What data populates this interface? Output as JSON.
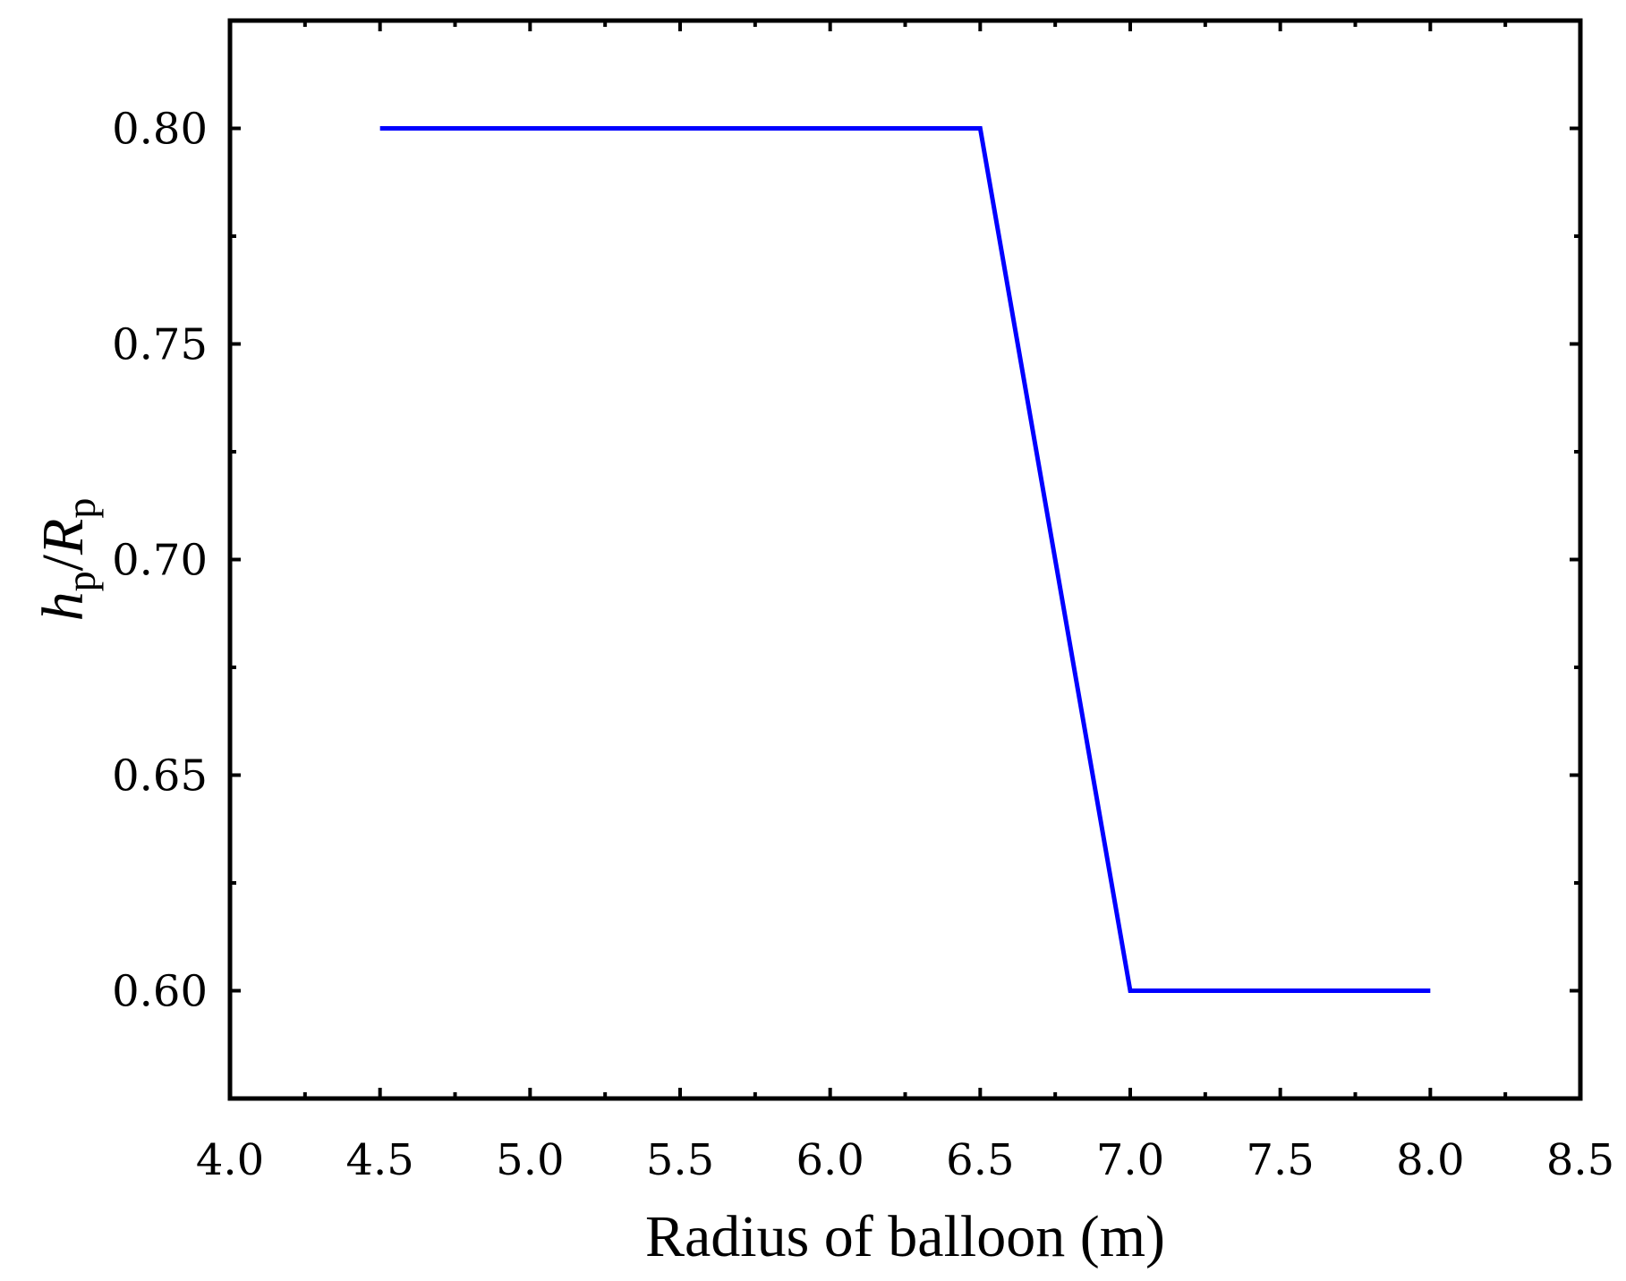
{
  "chart_data": {
    "type": "line",
    "title": "",
    "xlabel": "Radius of balloon (m)",
    "ylabel": {
      "base": "h",
      "base_sub": "p",
      "slash": "/",
      "denom": "R",
      "denom_sub": "p"
    },
    "xlim": [
      4.0,
      8.5
    ],
    "ylim": [
      0.575,
      0.825
    ],
    "x_ticks": [
      4.0,
      4.5,
      5.0,
      5.5,
      6.0,
      6.5,
      7.0,
      7.5,
      8.0,
      8.5
    ],
    "x_tick_labels": [
      "4.0",
      "4.5",
      "5.0",
      "5.5",
      "6.0",
      "6.5",
      "7.0",
      "7.5",
      "8.0",
      "8.5"
    ],
    "y_ticks": [
      0.6,
      0.65,
      0.7,
      0.75,
      0.8
    ],
    "y_tick_labels": [
      "0.60",
      "0.65",
      "0.70",
      "0.75",
      "0.80"
    ],
    "grid": false,
    "legend": "none",
    "series": [
      {
        "color": "#0000ff",
        "x": [
          4.5,
          5.0,
          5.5,
          6.0,
          6.5,
          7.0,
          7.5,
          8.0
        ],
        "y": [
          0.8,
          0.8,
          0.8,
          0.8,
          0.8,
          0.6,
          0.6,
          0.6
        ]
      }
    ]
  }
}
